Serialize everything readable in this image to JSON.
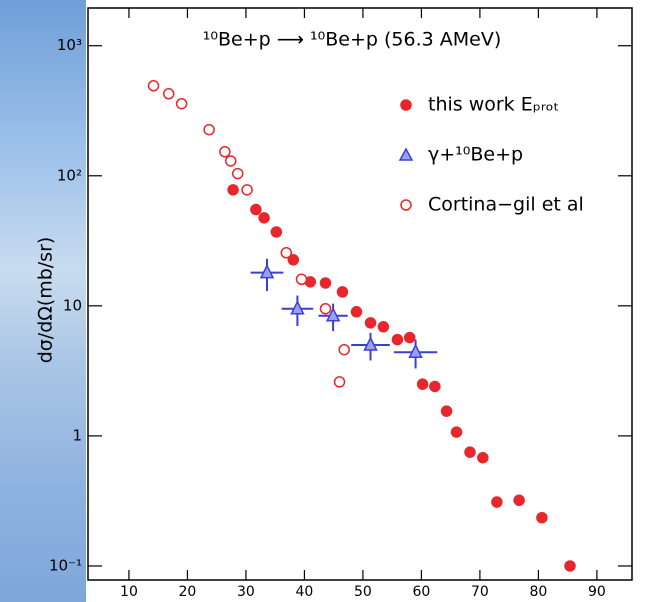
{
  "chart_data": {
    "type": "scatter",
    "title": "¹⁰Be+p ⟶ ¹⁰Be+p (56.3 AMeV)",
    "y_label": "dσ/dΩ(mb/sr)",
    "log_y": true,
    "xlim": [
      3,
      96
    ],
    "ylim": [
      0.078,
      1950
    ],
    "xticks": [
      10,
      20,
      30,
      40,
      50,
      60,
      70,
      80,
      90
    ],
    "yticks": [
      {
        "value": 0.1,
        "label": "10⁻¹"
      },
      1,
      10,
      {
        "value": 100,
        "label": "10²"
      },
      {
        "value": 1000,
        "label": "10³"
      }
    ],
    "series": [
      {
        "name": "this work Eₚᵣₒₜ",
        "color": "#e8262b",
        "marker": "filled-circle",
        "x": [
          27.8,
          31.7,
          33.1,
          35.2,
          38.1,
          41.0,
          43.6,
          46.5,
          48.9,
          51.3,
          53.5,
          55.9,
          58.0,
          60.2,
          62.3,
          64.3,
          66.0,
          68.3,
          70.5,
          72.9,
          76.7,
          80.6,
          85.4
        ],
        "values": [
          78,
          55,
          47.5,
          37,
          22.6,
          15.3,
          15,
          12.8,
          9,
          7.4,
          6.9,
          5.5,
          5.7,
          2.5,
          2.4,
          1.55,
          1.07,
          0.75,
          0.68,
          0.31,
          0.32,
          0.235,
          0.1
        ]
      },
      {
        "name": "γ+¹⁰Be+p",
        "color": "#3a3fd6",
        "marker": "triangle",
        "x": [
          33.6,
          38.8,
          44.9,
          51.3,
          59.0
        ],
        "values": [
          18,
          9.5,
          8.4,
          5.0,
          4.4
        ],
        "xerr": [
          2.8,
          2.7,
          2.5,
          3.3,
          3.7
        ],
        "yerr": [
          5,
          2.5,
          2,
          1.2,
          1.1
        ]
      },
      {
        "name": "Cortina−gil et al",
        "color": "#e8262b",
        "marker": "open-circle",
        "x": [
          14.2,
          16.8,
          19.0,
          23.7,
          26.4,
          27.4,
          28.6,
          30.2,
          36.9,
          39.5,
          43.6,
          46.8,
          46.0
        ],
        "values": [
          492,
          427,
          358,
          226,
          153,
          130,
          104,
          78,
          25.6,
          16,
          9.5,
          4.6,
          2.6
        ]
      }
    ]
  }
}
